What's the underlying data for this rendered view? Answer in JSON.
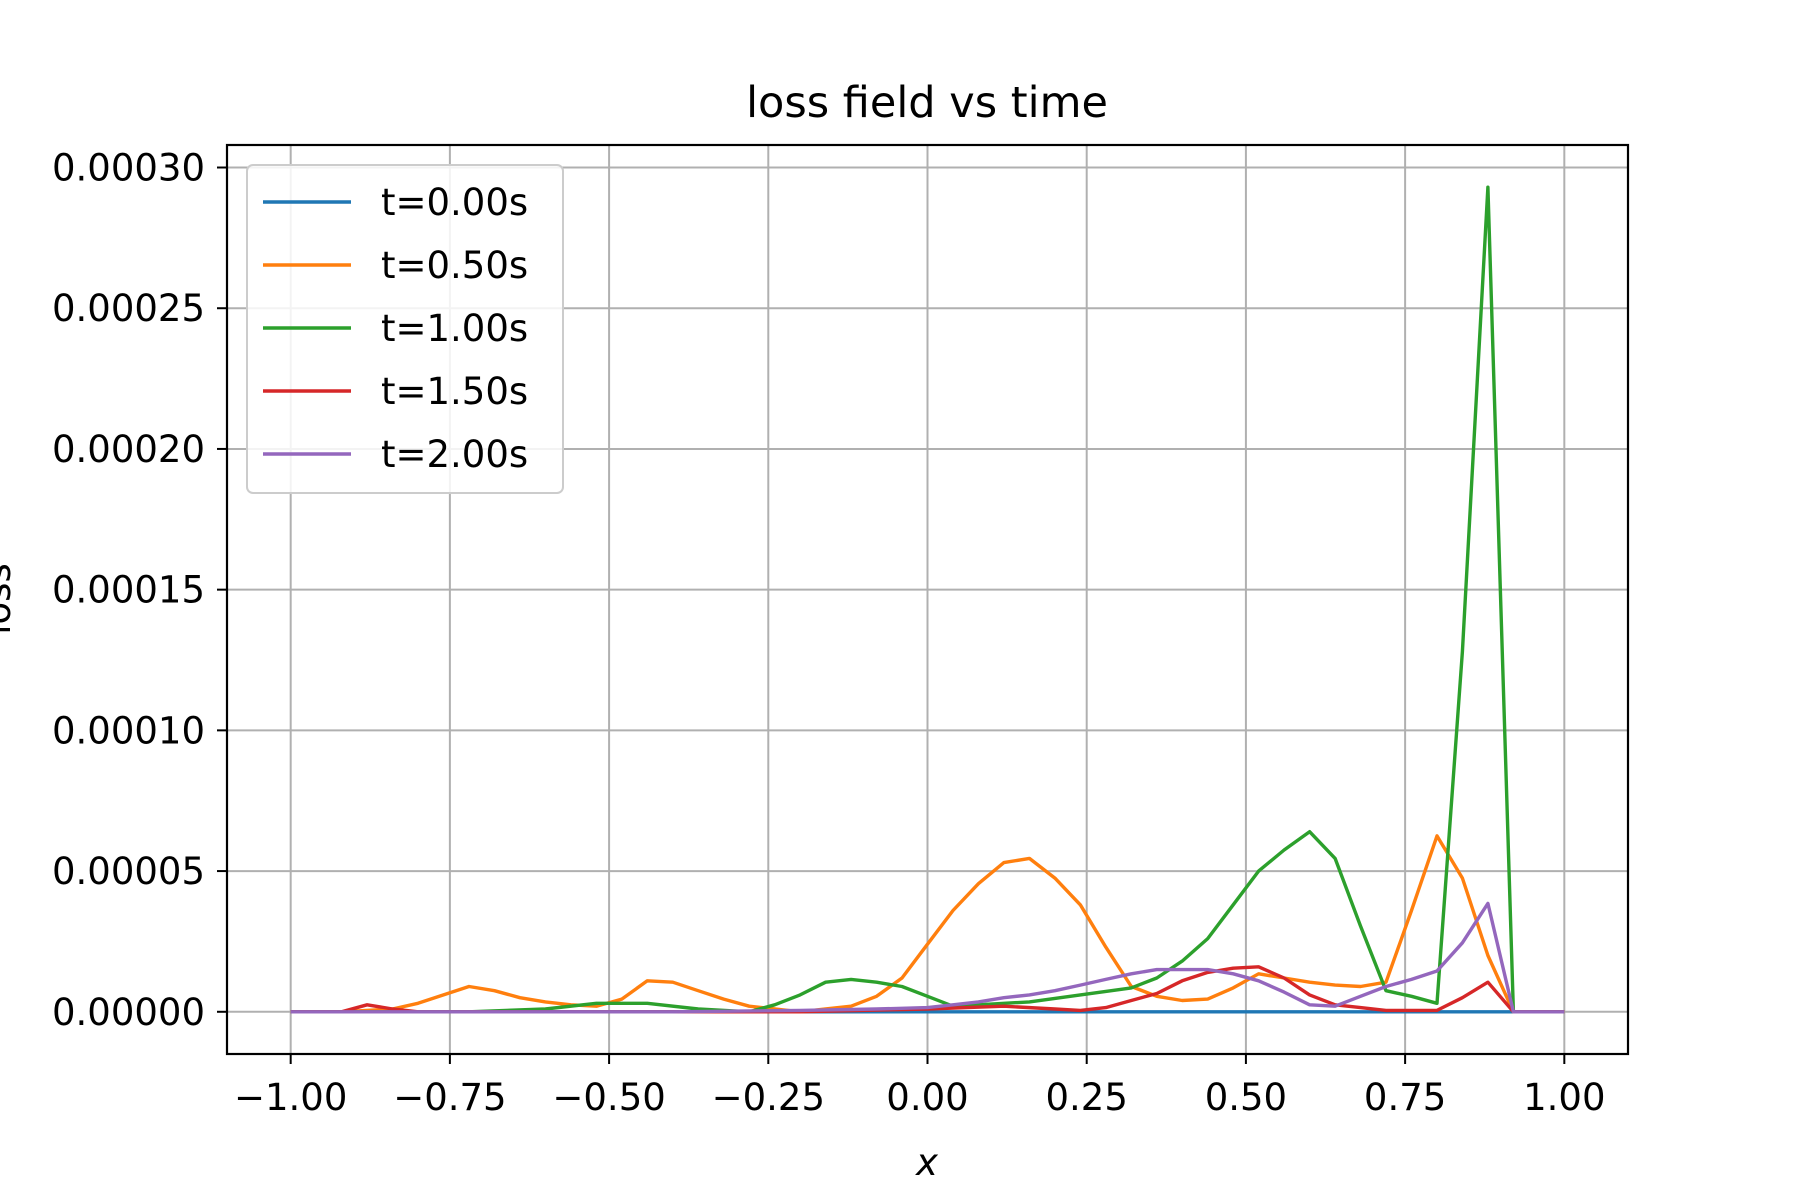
{
  "chart_data": {
    "type": "line",
    "title": "loss field vs time",
    "xlabel": "x",
    "ylabel": "loss",
    "xlim": [
      -1.1,
      1.1
    ],
    "ylim": [
      -1.5e-05,
      0.000308
    ],
    "xticks": [
      -1.0,
      -0.75,
      -0.5,
      -0.25,
      0.0,
      0.25,
      0.5,
      0.75,
      1.0
    ],
    "xtick_labels": [
      "−1.00",
      "−0.75",
      "−0.50",
      "−0.25",
      "0.00",
      "0.25",
      "0.50",
      "0.75",
      "1.00"
    ],
    "yticks": [
      0,
      5e-05,
      0.0001,
      0.00015,
      0.0002,
      0.00025,
      0.0003
    ],
    "ytick_labels": [
      "0.00000",
      "0.00005",
      "0.00010",
      "0.00015",
      "0.00020",
      "0.00025",
      "0.00030"
    ],
    "grid": true,
    "legend_position": "upper-left",
    "series": [
      {
        "name": "t=0.00s",
        "color": "#1f77b4",
        "points": [
          [
            -1.0,
            0
          ],
          [
            1.0,
            0
          ]
        ]
      },
      {
        "name": "t=0.50s",
        "color": "#ff7f0e",
        "points": [
          [
            -1.0,
            0
          ],
          [
            -0.92,
            0
          ],
          [
            -0.84,
            1e-06
          ],
          [
            -0.8,
            3e-06
          ],
          [
            -0.76,
            6e-06
          ],
          [
            -0.72,
            9e-06
          ],
          [
            -0.68,
            7.5e-06
          ],
          [
            -0.64,
            5e-06
          ],
          [
            -0.6,
            3.5e-06
          ],
          [
            -0.56,
            2.5e-06
          ],
          [
            -0.52,
            2e-06
          ],
          [
            -0.48,
            4.5e-06
          ],
          [
            -0.44,
            1.1e-05
          ],
          [
            -0.4,
            1.05e-05
          ],
          [
            -0.36,
            7.5e-06
          ],
          [
            -0.32,
            4.5e-06
          ],
          [
            -0.28,
            2e-06
          ],
          [
            -0.24,
            1e-06
          ],
          [
            -0.2,
            0
          ],
          [
            -0.16,
            1e-06
          ],
          [
            -0.12,
            2e-06
          ],
          [
            -0.08,
            5.5e-06
          ],
          [
            -0.04,
            1.2e-05
          ],
          [
            0.0,
            2.4e-05
          ],
          [
            0.04,
            3.6e-05
          ],
          [
            0.08,
            4.55e-05
          ],
          [
            0.12,
            5.3e-05
          ],
          [
            0.16,
            5.45e-05
          ],
          [
            0.2,
            4.75e-05
          ],
          [
            0.24,
            3.8e-05
          ],
          [
            0.28,
            2.3e-05
          ],
          [
            0.32,
            9e-06
          ],
          [
            0.36,
            5.5e-06
          ],
          [
            0.4,
            4e-06
          ],
          [
            0.44,
            4.5e-06
          ],
          [
            0.48,
            8.5e-06
          ],
          [
            0.52,
            1.35e-05
          ],
          [
            0.56,
            1.2e-05
          ],
          [
            0.6,
            1.05e-05
          ],
          [
            0.64,
            9.5e-06
          ],
          [
            0.68,
            9e-06
          ],
          [
            0.72,
            1.05e-05
          ],
          [
            0.76,
            3.6e-05
          ],
          [
            0.8,
            6.25e-05
          ],
          [
            0.84,
            4.75e-05
          ],
          [
            0.88,
            2e-05
          ],
          [
            0.92,
            0
          ],
          [
            1.0,
            0
          ]
        ]
      },
      {
        "name": "t=1.00s",
        "color": "#2ca02c",
        "points": [
          [
            -1.0,
            0
          ],
          [
            -0.72,
            0
          ],
          [
            -0.6,
            1e-06
          ],
          [
            -0.52,
            3e-06
          ],
          [
            -0.44,
            3e-06
          ],
          [
            -0.36,
            1e-06
          ],
          [
            -0.28,
            0
          ],
          [
            -0.24,
            2.5e-06
          ],
          [
            -0.2,
            6e-06
          ],
          [
            -0.16,
            1.05e-05
          ],
          [
            -0.12,
            1.15e-05
          ],
          [
            -0.08,
            1.05e-05
          ],
          [
            -0.04,
            9e-06
          ],
          [
            0.0,
            5.5e-06
          ],
          [
            0.04,
            2e-06
          ],
          [
            0.08,
            2.5e-06
          ],
          [
            0.16,
            3.5e-06
          ],
          [
            0.24,
            6e-06
          ],
          [
            0.32,
            8.5e-06
          ],
          [
            0.36,
            1.2e-05
          ],
          [
            0.4,
            1.8e-05
          ],
          [
            0.44,
            2.6e-05
          ],
          [
            0.48,
            3.8e-05
          ],
          [
            0.52,
            5e-05
          ],
          [
            0.56,
            5.75e-05
          ],
          [
            0.6,
            6.4e-05
          ],
          [
            0.64,
            5.45e-05
          ],
          [
            0.68,
            3.05e-05
          ],
          [
            0.72,
            7.5e-06
          ],
          [
            0.76,
            5.5e-06
          ],
          [
            0.8,
            3e-06
          ],
          [
            0.84,
            0.000128
          ],
          [
            0.88,
            0.000293
          ],
          [
            0.92,
            0
          ],
          [
            1.0,
            0
          ]
        ]
      },
      {
        "name": "t=1.50s",
        "color": "#d62728",
        "points": [
          [
            -1.0,
            0
          ],
          [
            -0.92,
            0
          ],
          [
            -0.88,
            2.5e-06
          ],
          [
            -0.84,
            1e-06
          ],
          [
            -0.8,
            0
          ],
          [
            -0.6,
            0
          ],
          [
            -0.2,
            0
          ],
          [
            0.0,
            1e-06
          ],
          [
            0.12,
            2e-06
          ],
          [
            0.2,
            1e-06
          ],
          [
            0.24,
            5e-07
          ],
          [
            0.28,
            1.5e-06
          ],
          [
            0.32,
            4e-06
          ],
          [
            0.36,
            6.5e-06
          ],
          [
            0.4,
            1.1e-05
          ],
          [
            0.44,
            1.4e-05
          ],
          [
            0.48,
            1.55e-05
          ],
          [
            0.52,
            1.6e-05
          ],
          [
            0.56,
            1.2e-05
          ],
          [
            0.6,
            6e-06
          ],
          [
            0.64,
            2.5e-06
          ],
          [
            0.68,
            1.5e-06
          ],
          [
            0.72,
            5e-07
          ],
          [
            0.8,
            5e-07
          ],
          [
            0.84,
            5e-06
          ],
          [
            0.88,
            1.05e-05
          ],
          [
            0.92,
            0
          ],
          [
            1.0,
            0
          ]
        ]
      },
      {
        "name": "t=2.00s",
        "color": "#9467bd",
        "points": [
          [
            -1.0,
            0
          ],
          [
            -0.8,
            0
          ],
          [
            -0.4,
            0
          ],
          [
            -0.2,
            5e-07
          ],
          [
            -0.08,
            1e-06
          ],
          [
            0.0,
            1.5e-06
          ],
          [
            0.04,
            2.5e-06
          ],
          [
            0.08,
            3.5e-06
          ],
          [
            0.12,
            5e-06
          ],
          [
            0.16,
            6e-06
          ],
          [
            0.2,
            7.5e-06
          ],
          [
            0.24,
            9.5e-06
          ],
          [
            0.28,
            1.15e-05
          ],
          [
            0.32,
            1.35e-05
          ],
          [
            0.36,
            1.5e-05
          ],
          [
            0.4,
            1.5e-05
          ],
          [
            0.44,
            1.5e-05
          ],
          [
            0.48,
            1.35e-05
          ],
          [
            0.52,
            1.1e-05
          ],
          [
            0.56,
            7e-06
          ],
          [
            0.6,
            2.5e-06
          ],
          [
            0.64,
            2e-06
          ],
          [
            0.68,
            5.5e-06
          ],
          [
            0.72,
            9e-06
          ],
          [
            0.76,
            1.15e-05
          ],
          [
            0.8,
            1.45e-05
          ],
          [
            0.84,
            2.45e-05
          ],
          [
            0.88,
            3.85e-05
          ],
          [
            0.92,
            0
          ],
          [
            1.0,
            0
          ]
        ]
      }
    ]
  }
}
